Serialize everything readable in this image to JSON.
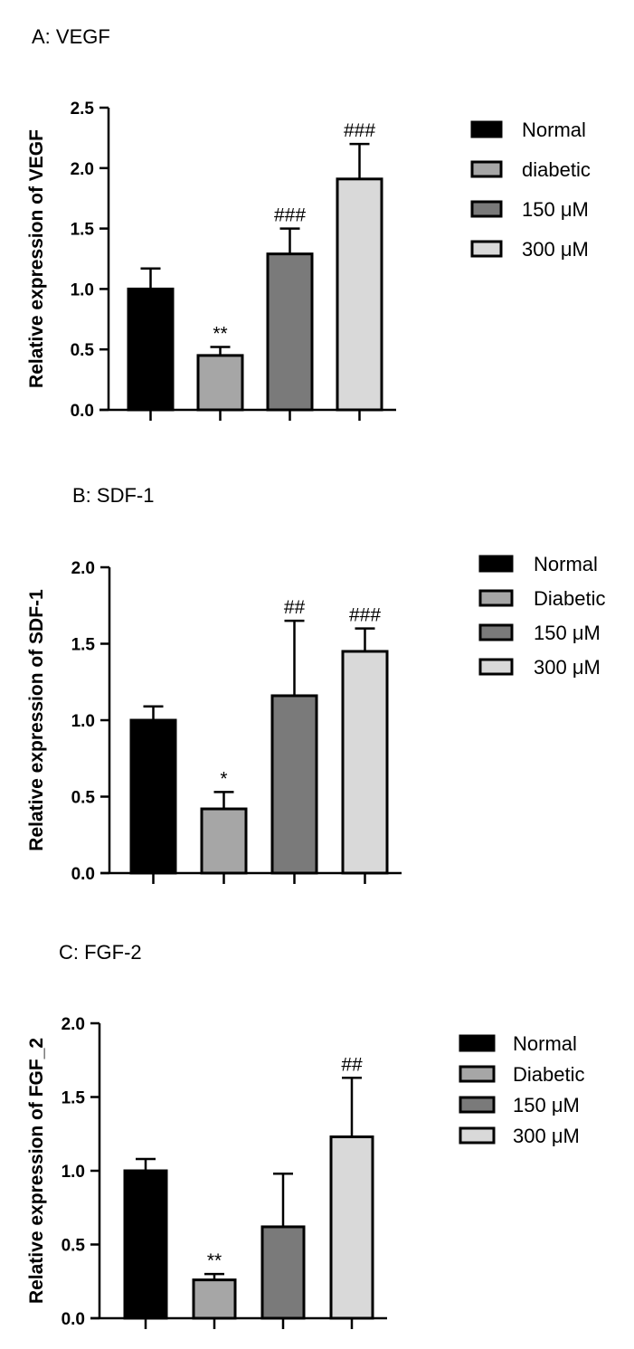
{
  "panels": [
    {
      "title": "A: VEGF",
      "chart_data": {
        "type": "bar",
        "ylabel": "Relative expression of VEGF",
        "ylim": [
          0,
          2.5
        ],
        "yticks": [
          "0.0",
          "0.5",
          "1.0",
          "1.5",
          "2.0",
          "2.5"
        ],
        "categories": [
          "Normal",
          "diabetic",
          "150 μM",
          "300 μM"
        ],
        "values": [
          1.0,
          0.45,
          1.29,
          1.91
        ],
        "errors": [
          0.17,
          0.07,
          0.21,
          0.29
        ],
        "annotations": [
          "",
          "**",
          "###",
          "###"
        ],
        "colors": [
          "#000000",
          "#a6a6a6",
          "#7a7a7a",
          "#d9d9d9"
        ],
        "legend": [
          "Normal",
          "diabetic",
          "150 μM",
          "300 μM"
        ],
        "legend_position": "right"
      }
    },
    {
      "title": "B: SDF-1",
      "chart_data": {
        "type": "bar",
        "ylabel": "Relative expression of SDF-1",
        "ylim": [
          0,
          2.0
        ],
        "yticks": [
          "0.0",
          "0.5",
          "1.0",
          "1.5",
          "2.0"
        ],
        "categories": [
          "Normal",
          "Diabetic",
          "150 μM",
          "300 μM"
        ],
        "values": [
          1.0,
          0.42,
          1.16,
          1.45
        ],
        "errors": [
          0.09,
          0.11,
          0.49,
          0.15
        ],
        "annotations": [
          "",
          "*",
          "##",
          "###"
        ],
        "colors": [
          "#000000",
          "#a6a6a6",
          "#7a7a7a",
          "#d9d9d9"
        ],
        "legend": [
          "Normal",
          "Diabetic",
          "150 μM",
          "300 μM"
        ],
        "legend_position": "right"
      }
    },
    {
      "title": "C: FGF-2",
      "chart_data": {
        "type": "bar",
        "ylabel": "Relative expression of FGF_2",
        "ylim": [
          0,
          2.0
        ],
        "yticks": [
          "0.0",
          "0.5",
          "1.0",
          "1.5",
          "2.0"
        ],
        "categories": [
          "Normal",
          "Diabetic",
          "150 μM",
          "300 μM"
        ],
        "values": [
          1.0,
          0.26,
          0.62,
          1.23
        ],
        "errors": [
          0.08,
          0.04,
          0.36,
          0.4
        ],
        "annotations": [
          "",
          "**",
          "",
          "##"
        ],
        "colors": [
          "#000000",
          "#a6a6a6",
          "#7a7a7a",
          "#d9d9d9"
        ],
        "legend": [
          "Normal",
          "Diabetic",
          "150 μM",
          "300 μM"
        ],
        "legend_position": "right"
      }
    }
  ]
}
